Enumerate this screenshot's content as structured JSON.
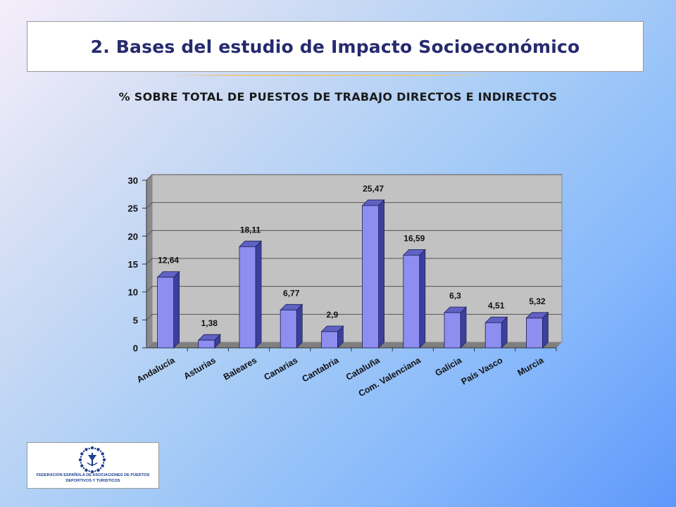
{
  "header": {
    "title": "2. Bases del estudio de Impacto Socioeconómico"
  },
  "colors": {
    "bar_front": "#8d8ef0",
    "bar_side": "#3d3f9c",
    "bar_top": "#5f61c4",
    "title_text": "#262a6e",
    "logo_blue": "#1c3f8f"
  },
  "chart_data": {
    "type": "bar",
    "title": "% SOBRE TOTAL DE PUESTOS DE TRABAJO DIRECTOS E INDIRECTOS",
    "categories": [
      "Andalucía",
      "Asturias",
      "Baleares",
      "Canarias",
      "Cantabria",
      "Cataluña",
      "Com. Valenciana",
      "Galicia",
      "País Vasco",
      "Murcia"
    ],
    "values": [
      12.64,
      1.38,
      18.11,
      6.77,
      2.9,
      25.47,
      16.59,
      6.3,
      4.51,
      5.32
    ],
    "value_labels": [
      "12,64",
      "1,38",
      "18,11",
      "6,77",
      "2,9",
      "25,47",
      "16,59",
      "6,3",
      "4,51",
      "5,32"
    ],
    "ylim": [
      0,
      30
    ],
    "yticks": [
      "0",
      "5",
      "10",
      "15",
      "20",
      "25",
      "30"
    ],
    "grid": true,
    "legend": "none",
    "style": "3d"
  },
  "logo": {
    "icon": "federation-emblem-icon",
    "line1": "FEDERACION ESPAÑOLA DE ASOCIACIONES DE PUERTOS",
    "line2": "DEPORTIVOS Y TURISTICOS"
  }
}
